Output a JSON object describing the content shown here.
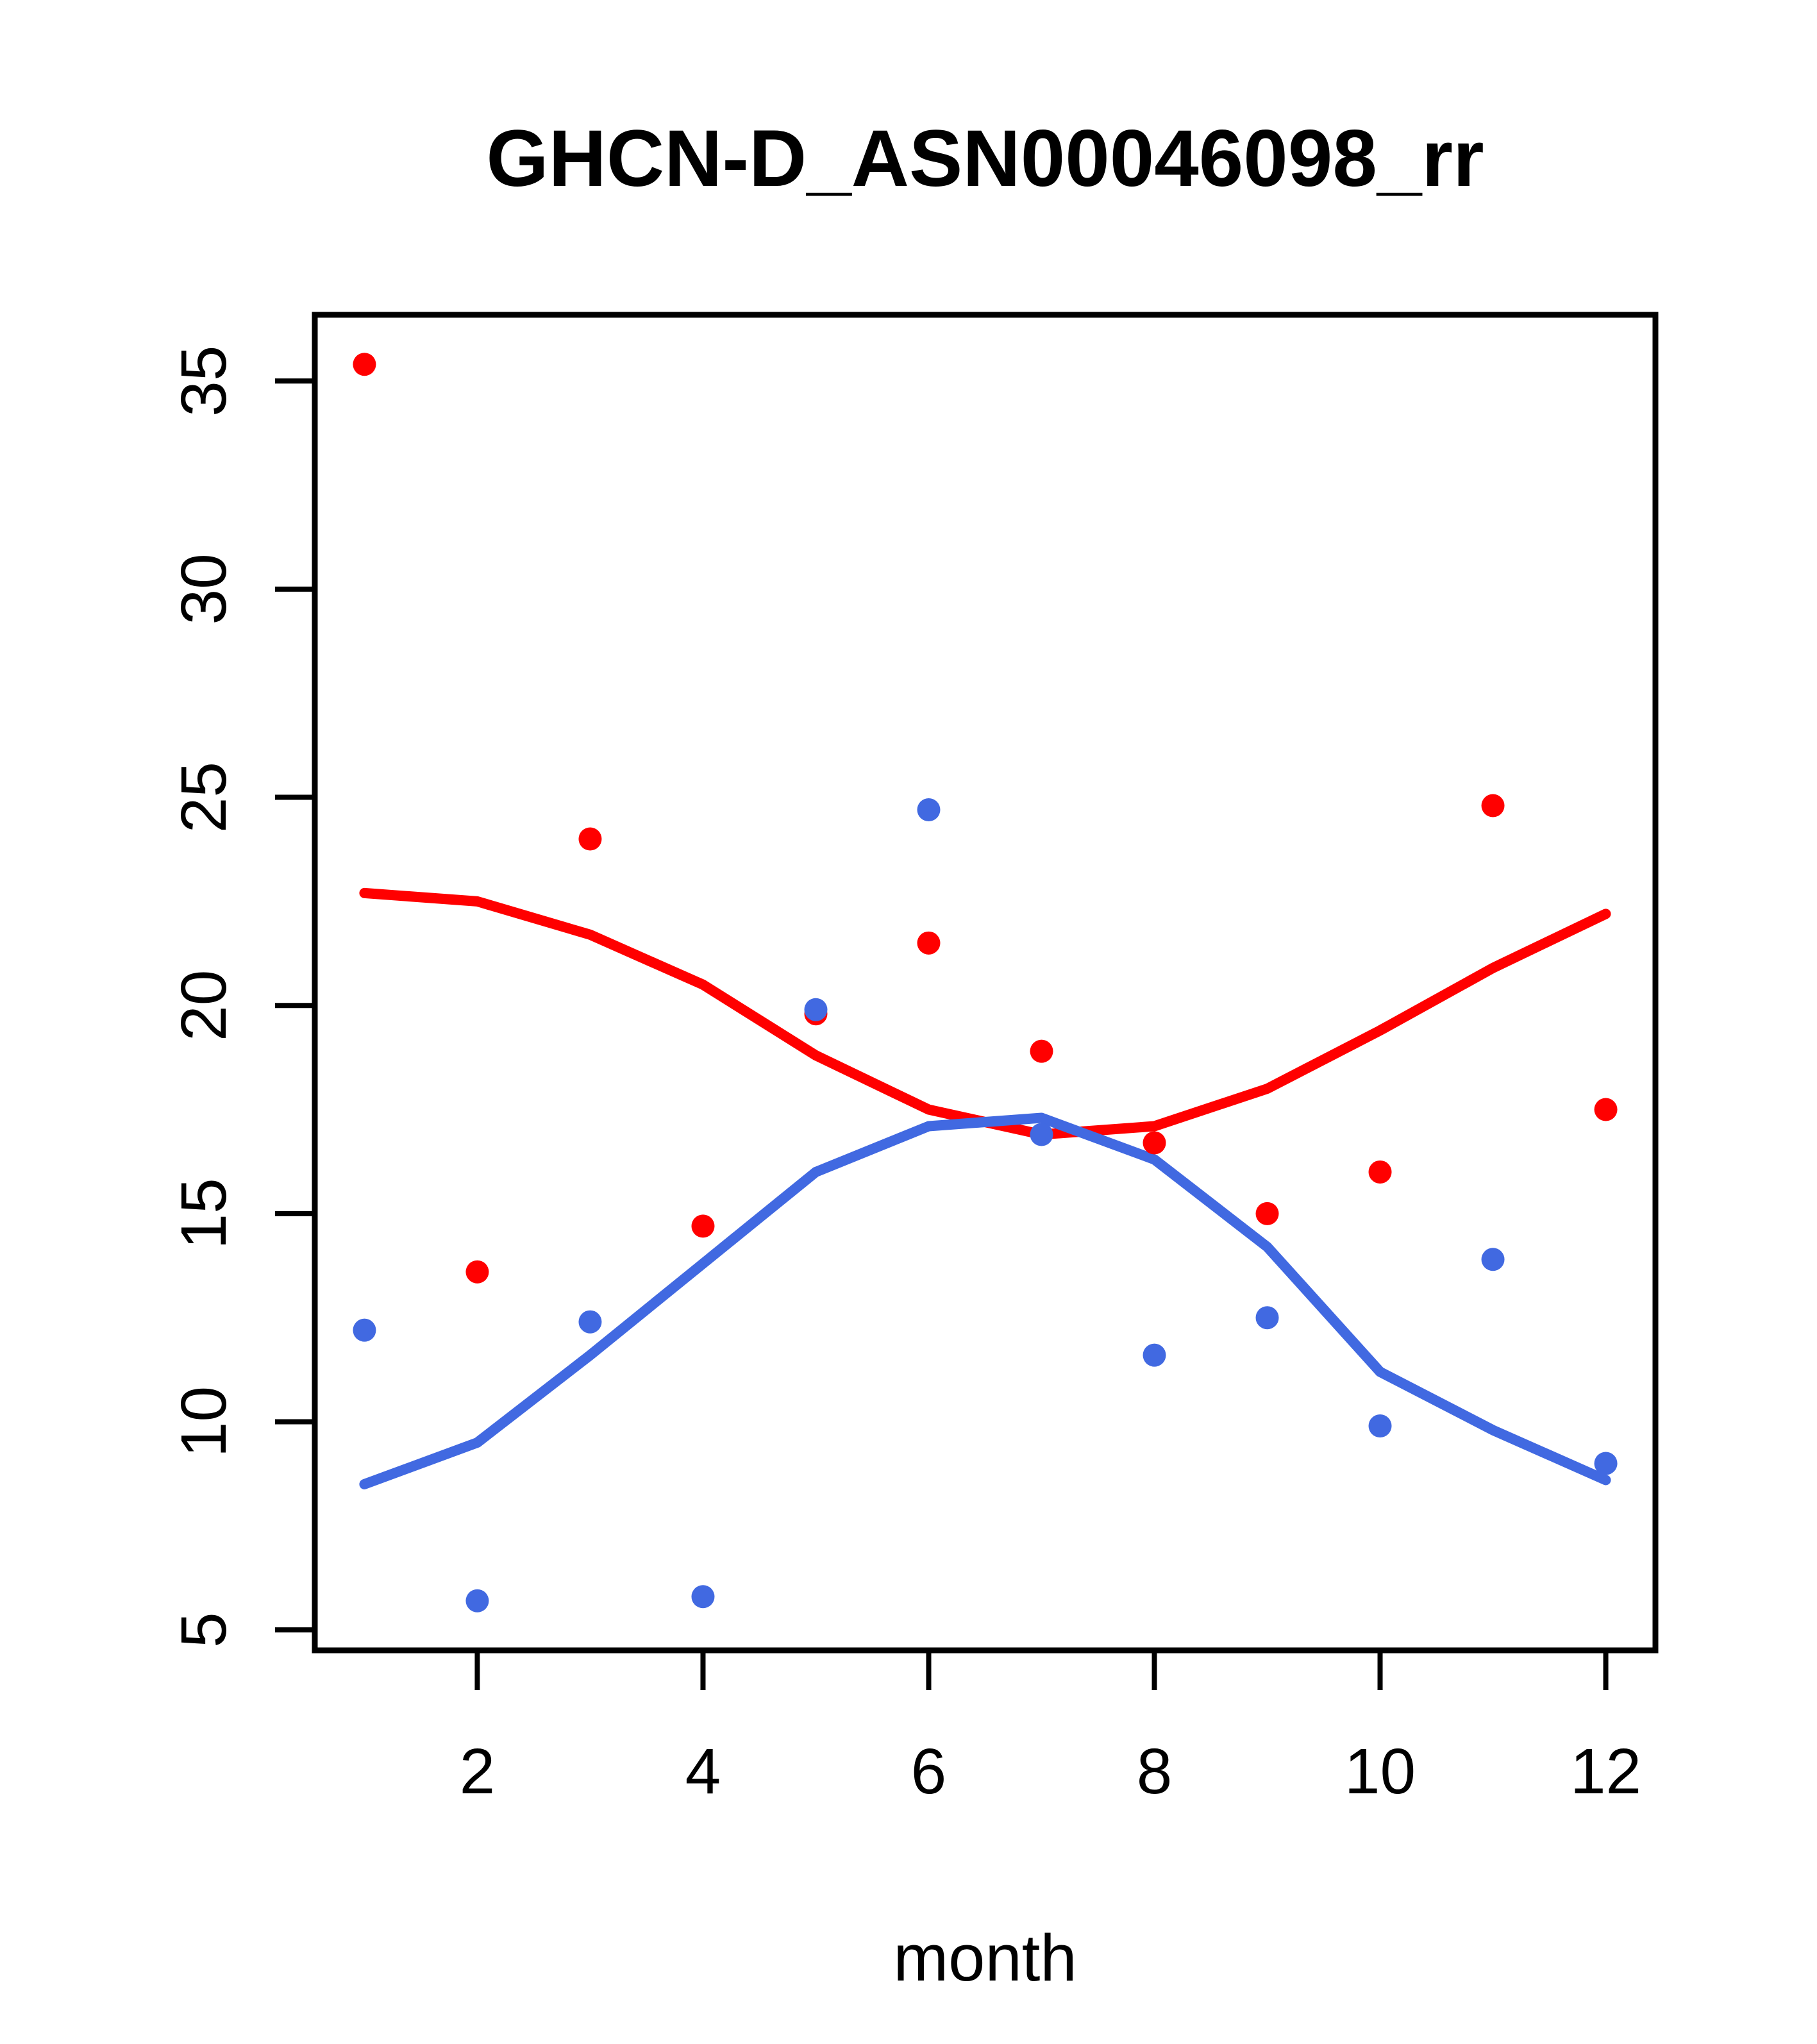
{
  "title": "GHCN-D_ASN00046098_rr",
  "xlabel": "month",
  "colors": {
    "red_series": "#ff0000",
    "blue_series": "#4169e1",
    "axis": "#000000",
    "background": "#ffffff"
  },
  "chart_data": {
    "type": "scatter",
    "title": "GHCN-D_ASN00046098_rr",
    "xlabel": "month",
    "ylabel": "",
    "grid": false,
    "legend": "none",
    "x": [
      1,
      2,
      3,
      4,
      5,
      6,
      7,
      8,
      9,
      10,
      11,
      12
    ],
    "xticks": [
      2,
      4,
      6,
      8,
      10,
      12
    ],
    "yticks": [
      5,
      10,
      15,
      20,
      25,
      30,
      35
    ],
    "xlim": [
      0.56,
      12.44
    ],
    "ylim": [
      4.51,
      36.59
    ],
    "series": [
      {
        "name": "red-smooth-line",
        "kind": "line",
        "color": "#ff0000",
        "values": [
          22.7,
          22.5,
          21.7,
          20.5,
          18.8,
          17.5,
          16.9,
          17.1,
          18.0,
          19.4,
          20.9,
          22.2
        ]
      },
      {
        "name": "blue-smooth-line",
        "kind": "line",
        "color": "#4169e1",
        "values": [
          8.5,
          9.5,
          11.6,
          13.8,
          16.0,
          17.1,
          17.3,
          16.3,
          14.2,
          11.2,
          9.8,
          8.6
        ]
      },
      {
        "name": "red-points",
        "kind": "scatter",
        "color": "#ff0000",
        "values": [
          35.4,
          13.6,
          24.0,
          14.7,
          19.8,
          21.5,
          18.9,
          16.7,
          15.0,
          16.0,
          24.8,
          17.5
        ]
      },
      {
        "name": "blue-points",
        "kind": "scatter",
        "color": "#4169e1",
        "values": [
          12.2,
          5.7,
          12.4,
          5.8,
          19.9,
          24.7,
          16.9,
          11.6,
          12.5,
          9.9,
          13.9,
          9.0
        ]
      }
    ]
  }
}
